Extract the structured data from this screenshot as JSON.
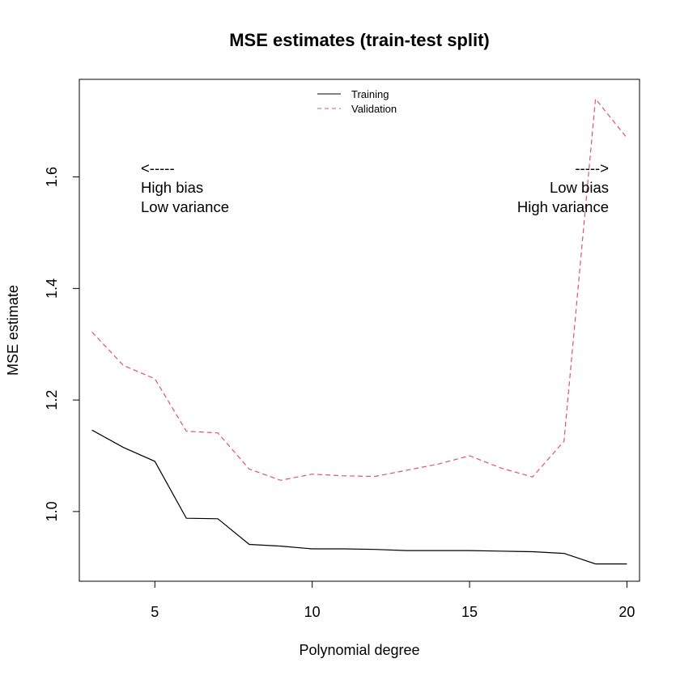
{
  "chart_data": {
    "type": "line",
    "title": "MSE estimates (train-test split)",
    "xlabel": "Polynomial degree",
    "ylabel": "MSE estimate",
    "xlim": [
      2.6,
      20.4
    ],
    "ylim": [
      0.875,
      1.775
    ],
    "xticks": [
      5,
      10,
      15,
      20
    ],
    "xtick_labels": [
      "5",
      "10",
      "15",
      "20"
    ],
    "yticks": [
      1.0,
      1.2,
      1.4,
      1.6
    ],
    "ytick_labels": [
      "1.0",
      "1.2",
      "1.4",
      "1.6"
    ],
    "x": [
      3,
      4,
      5,
      6,
      7,
      8,
      9,
      10,
      11,
      12,
      13,
      14,
      15,
      16,
      17,
      18,
      19,
      20
    ],
    "series": [
      {
        "name": "Training",
        "color": "#000000",
        "style": "solid",
        "values": [
          1.146,
          1.115,
          1.09,
          0.988,
          0.987,
          0.941,
          0.938,
          0.933,
          0.933,
          0.932,
          0.93,
          0.93,
          0.93,
          0.929,
          0.928,
          0.925,
          0.906,
          0.906
        ]
      },
      {
        "name": "Validation",
        "color": "#DF536B",
        "style": "dashed",
        "values": [
          1.322,
          1.262,
          1.238,
          1.144,
          1.141,
          1.076,
          1.056,
          1.067,
          1.064,
          1.063,
          1.074,
          1.085,
          1.1,
          1.078,
          1.062,
          1.126,
          1.74,
          1.67
        ]
      }
    ],
    "legend_position": "top-center",
    "grid": false,
    "annotations": {
      "left": {
        "arrow": "<-----",
        "line1": "High bias",
        "line2": "Low variance"
      },
      "right": {
        "arrow": "----->",
        "line1": "Low bias",
        "line2": "High variance"
      }
    }
  }
}
